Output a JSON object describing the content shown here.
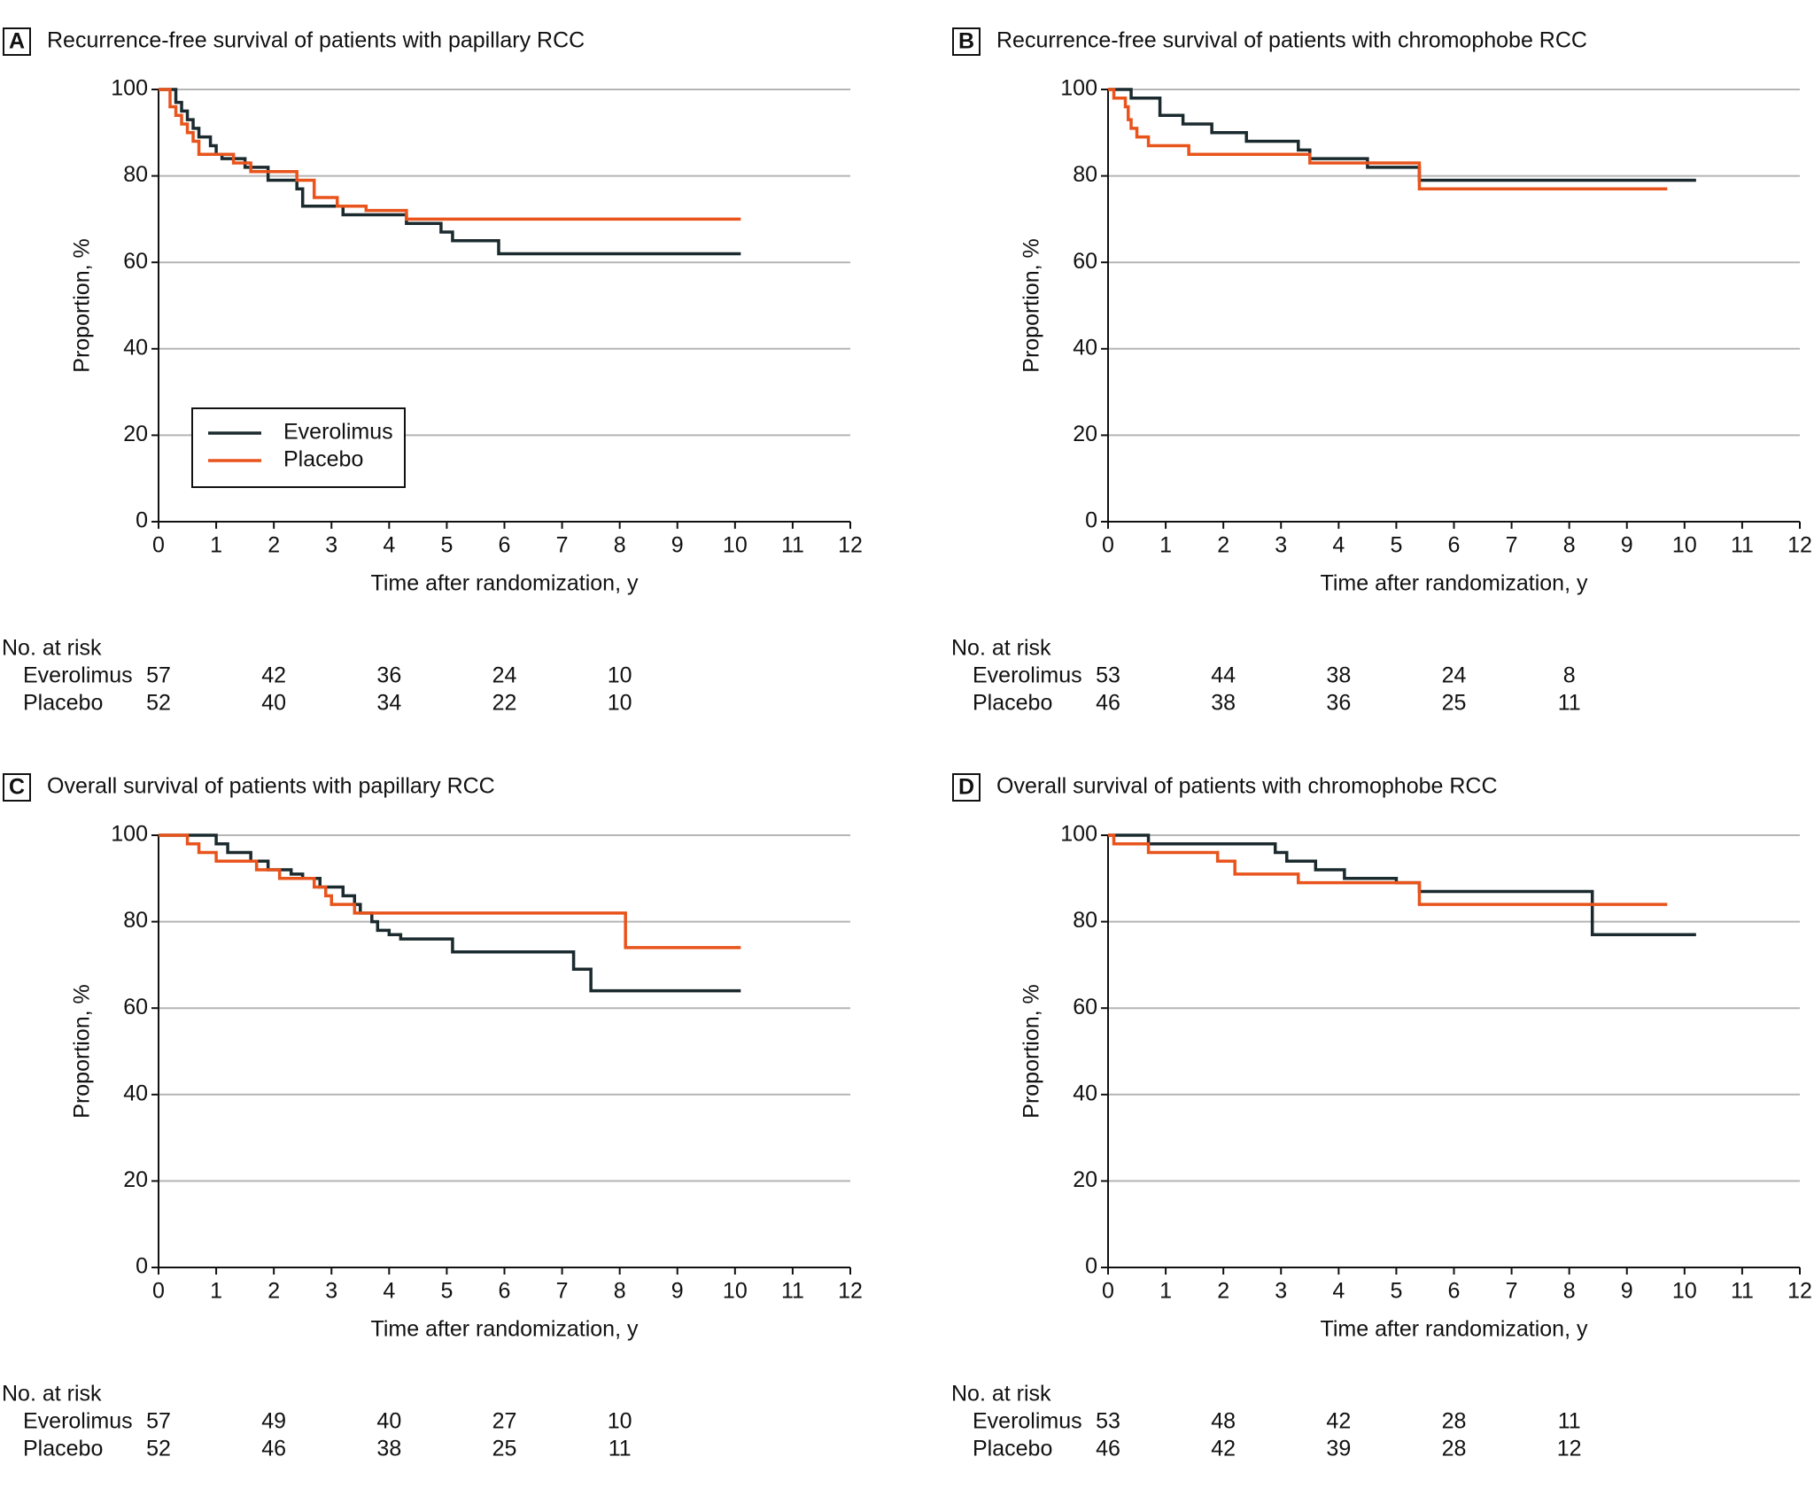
{
  "chart_data": [
    {
      "type": "line",
      "drawstyle": "steps-post",
      "panel": "A",
      "title": "Recurrence-free survival of patients with papillary RCC",
      "xlabel": "Time after randomization, y",
      "ylabel": "Proportion, %",
      "xlim": [
        0,
        12
      ],
      "ylim": [
        0,
        100
      ],
      "xticks": [
        0,
        1,
        2,
        3,
        4,
        5,
        6,
        7,
        8,
        9,
        10,
        11,
        12
      ],
      "yticks": [
        0,
        20,
        40,
        60,
        80,
        100
      ],
      "grid": true,
      "legend": "left",
      "series": [
        {
          "name": "Everolimus",
          "color": "#1b2a2e",
          "x": [
            0,
            0.3,
            0.4,
            0.5,
            0.6,
            0.7,
            0.9,
            1.0,
            1.1,
            1.5,
            1.9,
            2.4,
            2.5,
            3.2,
            4.3,
            4.9,
            5.1,
            5.9,
            10.1
          ],
          "values": [
            100,
            97,
            95,
            93,
            91,
            89,
            87,
            85,
            84,
            82,
            79,
            77,
            73,
            71,
            69,
            67,
            65,
            62,
            62
          ]
        },
        {
          "name": "Placebo",
          "color": "#e8541c",
          "x": [
            0,
            0.2,
            0.3,
            0.4,
            0.5,
            0.6,
            0.7,
            1.3,
            1.6,
            2.4,
            2.7,
            3.1,
            3.6,
            4.3,
            10.1
          ],
          "values": [
            100,
            96,
            94,
            92,
            90,
            88,
            85,
            83,
            81,
            79,
            75,
            73,
            72,
            70,
            70
          ]
        }
      ],
      "risk_table": {
        "title": "No. at risk",
        "rows": [
          {
            "name": "Everolimus",
            "values": [
              57,
              42,
              36,
              24,
              10
            ]
          },
          {
            "name": "Placebo",
            "values": [
              52,
              40,
              34,
              22,
              10
            ]
          }
        ]
      }
    },
    {
      "type": "line",
      "drawstyle": "steps-post",
      "panel": "B",
      "title": "Recurrence-free survival of patients with chromophobe RCC",
      "xlabel": "Time after randomization, y",
      "ylabel": "Proportion, %",
      "xlim": [
        0,
        12
      ],
      "ylim": [
        0,
        100
      ],
      "xticks": [
        0,
        1,
        2,
        3,
        4,
        5,
        6,
        7,
        8,
        9,
        10,
        11,
        12
      ],
      "yticks": [
        0,
        20,
        40,
        60,
        80,
        100
      ],
      "grid": true,
      "series": [
        {
          "name": "Everolimus",
          "color": "#1b2a2e",
          "x": [
            0,
            0.4,
            0.9,
            1.3,
            1.8,
            2.4,
            3.3,
            3.5,
            4.5,
            5.4,
            10.2
          ],
          "values": [
            100,
            98,
            94,
            92,
            90,
            88,
            86,
            84,
            82,
            79,
            79
          ]
        },
        {
          "name": "Placebo",
          "color": "#e8541c",
          "x": [
            0,
            0.1,
            0.3,
            0.35,
            0.4,
            0.5,
            0.7,
            1.4,
            3.5,
            5.4,
            9.7
          ],
          "values": [
            100,
            98,
            96,
            93,
            91,
            89,
            87,
            85,
            83,
            77,
            77
          ]
        }
      ],
      "risk_table": {
        "title": "No. at risk",
        "rows": [
          {
            "name": "Everolimus",
            "values": [
              53,
              44,
              38,
              24,
              8
            ]
          },
          {
            "name": "Placebo",
            "values": [
              46,
              38,
              36,
              25,
              11
            ]
          }
        ]
      }
    },
    {
      "type": "line",
      "drawstyle": "steps-post",
      "panel": "C",
      "title": "Overall survival of patients with papillary RCC",
      "xlabel": "Time after randomization, y",
      "ylabel": "Proportion, %",
      "xlim": [
        0,
        12
      ],
      "ylim": [
        0,
        100
      ],
      "xticks": [
        0,
        1,
        2,
        3,
        4,
        5,
        6,
        7,
        8,
        9,
        10,
        11,
        12
      ],
      "yticks": [
        0,
        20,
        40,
        60,
        80,
        100
      ],
      "grid": true,
      "series": [
        {
          "name": "Everolimus",
          "color": "#1b2a2e",
          "x": [
            0,
            1.0,
            1.2,
            1.6,
            1.9,
            2.3,
            2.5,
            2.8,
            3.2,
            3.4,
            3.5,
            3.7,
            3.8,
            4.0,
            4.2,
            5.1,
            7.2,
            7.5,
            10.1
          ],
          "values": [
            100,
            98,
            96,
            94,
            92,
            91,
            90,
            88,
            86,
            84,
            82,
            80,
            78,
            77,
            76,
            73,
            69,
            64,
            64
          ]
        },
        {
          "name": "Placebo",
          "color": "#e8541c",
          "x": [
            0,
            0.5,
            0.7,
            1.0,
            1.7,
            2.1,
            2.7,
            2.9,
            3.0,
            3.4,
            8.1,
            10.1
          ],
          "values": [
            100,
            98,
            96,
            94,
            92,
            90,
            88,
            86,
            84,
            82,
            74,
            74
          ]
        }
      ],
      "risk_table": {
        "title": "No. at risk",
        "rows": [
          {
            "name": "Everolimus",
            "values": [
              57,
              49,
              40,
              27,
              10
            ]
          },
          {
            "name": "Placebo",
            "values": [
              52,
              46,
              38,
              25,
              11
            ]
          }
        ]
      }
    },
    {
      "type": "line",
      "drawstyle": "steps-post",
      "panel": "D",
      "title": "Overall survival of patients with chromophobe RCC",
      "xlabel": "Time after randomization, y",
      "ylabel": "Proportion, %",
      "xlim": [
        0,
        12
      ],
      "ylim": [
        0,
        100
      ],
      "xticks": [
        0,
        1,
        2,
        3,
        4,
        5,
        6,
        7,
        8,
        9,
        10,
        11,
        12
      ],
      "yticks": [
        0,
        20,
        40,
        60,
        80,
        100
      ],
      "grid": true,
      "series": [
        {
          "name": "Everolimus",
          "color": "#1b2a2e",
          "x": [
            0,
            0.7,
            2.9,
            3.1,
            3.6,
            4.1,
            5.0,
            5.4,
            8.4,
            10.2
          ],
          "values": [
            100,
            98,
            96,
            94,
            92,
            90,
            89,
            87,
            77,
            77
          ]
        },
        {
          "name": "Placebo",
          "color": "#e8541c",
          "x": [
            0,
            0.1,
            0.7,
            1.9,
            2.2,
            3.3,
            5.4,
            9.7
          ],
          "values": [
            100,
            98,
            96,
            94,
            91,
            89,
            84,
            84
          ]
        }
      ],
      "risk_table": {
        "title": "No. at risk",
        "rows": [
          {
            "name": "Everolimus",
            "values": [
              53,
              48,
              42,
              28,
              11
            ]
          },
          {
            "name": "Placebo",
            "values": [
              46,
              42,
              39,
              28,
              12
            ]
          }
        ]
      }
    }
  ]
}
